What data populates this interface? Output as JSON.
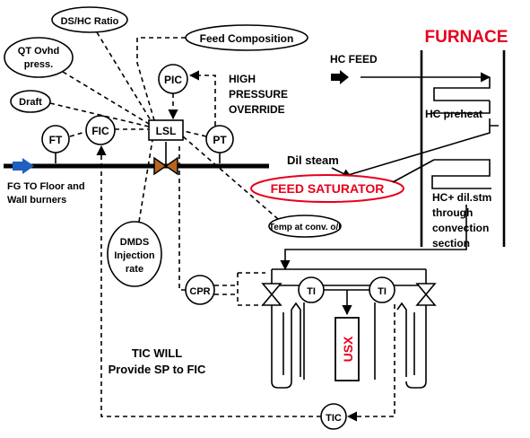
{
  "labels": {
    "ds_hc_ratio": "DS/HC Ratio",
    "qt_ovhd_1": "QT Ovhd",
    "qt_ovhd_2": "press.",
    "feed_composition": "Feed Composition",
    "draft": "Draft",
    "pic": "PIC",
    "ft": "FT",
    "fic": "FIC",
    "lsl": "LSL",
    "pt": "PT",
    "high_pressure_1": "HIGH",
    "high_pressure_2": "PRESSURE",
    "high_pressure_3": "OVERRIDE",
    "hc_feed": "HC FEED",
    "furnace": "FURNACE",
    "hc_preheat": "HC preheat",
    "dil_steam": "Dil steam",
    "feed_saturator": "FEED SATURATOR",
    "hc_dil_1": "HC+ dil.stm",
    "hc_dil_2": "through",
    "hc_dil_3": "convection",
    "hc_dil_4": "section",
    "fg_1": "FG TO Floor and",
    "fg_2": "Wall burners",
    "temp_conv": "Temp at conv. o/l",
    "dmds_1": "DMDS",
    "dmds_2": "Injection",
    "dmds_3": "rate",
    "cpr": "CPR",
    "ti": "TI",
    "usx": "USX",
    "tic_will_1": "TIC WILL",
    "tic_will_2": "Provide SP to FIC",
    "tic": "TIC"
  },
  "colors": {
    "line": "#000000",
    "accent_red": "#e8001c",
    "valve_body": "#b8651e",
    "arrow_blue": "#1f5fbf"
  }
}
